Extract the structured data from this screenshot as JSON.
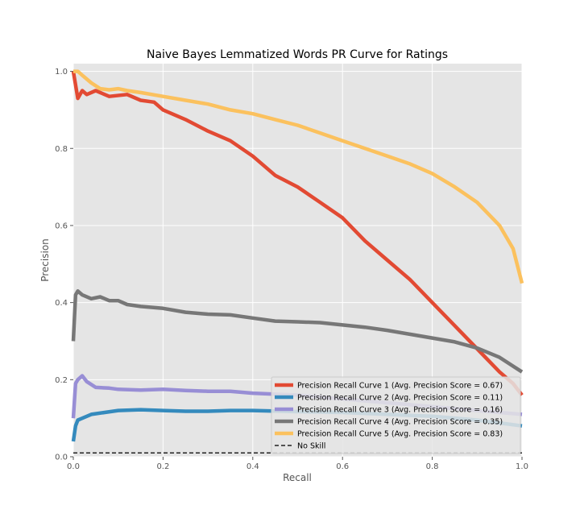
{
  "chart_data": {
    "type": "line",
    "title": "Naive Bayes Lemmatized Words PR Curve for Ratings",
    "xlabel": "Recall",
    "ylabel": "Precision",
    "xlim": [
      0,
      1
    ],
    "ylim": [
      0,
      1.02
    ],
    "xticks": [
      "0.0",
      "0.2",
      "0.4",
      "0.6",
      "0.8",
      "1.0"
    ],
    "yticks": [
      "0.0",
      "0.2",
      "0.4",
      "0.6",
      "0.8",
      "1.0"
    ],
    "grid": true,
    "legend_position": "lower-right",
    "background": "#E5E5E5",
    "series": [
      {
        "name": "Precision Recall Curve 1 (Avg. Precision Score = 0.67)",
        "color": "#E24A33",
        "x": [
          0,
          0.01,
          0.02,
          0.03,
          0.05,
          0.08,
          0.12,
          0.15,
          0.18,
          0.2,
          0.25,
          0.3,
          0.35,
          0.4,
          0.45,
          0.5,
          0.55,
          0.6,
          0.65,
          0.7,
          0.75,
          0.8,
          0.85,
          0.9,
          0.95,
          0.98,
          1.0
        ],
        "y": [
          1.0,
          0.93,
          0.95,
          0.94,
          0.95,
          0.935,
          0.94,
          0.925,
          0.92,
          0.9,
          0.875,
          0.845,
          0.82,
          0.78,
          0.73,
          0.7,
          0.66,
          0.62,
          0.56,
          0.51,
          0.46,
          0.4,
          0.34,
          0.28,
          0.22,
          0.19,
          0.16
        ]
      },
      {
        "name": "Precision Recall Curve 2 (Avg. Precision Score = 0.11)",
        "color": "#348ABD",
        "x": [
          0,
          0.005,
          0.01,
          0.02,
          0.04,
          0.07,
          0.1,
          0.15,
          0.2,
          0.25,
          0.3,
          0.35,
          0.4,
          0.5,
          0.6,
          0.7,
          0.8,
          0.9,
          1.0
        ],
        "y": [
          0.04,
          0.08,
          0.095,
          0.1,
          0.11,
          0.115,
          0.12,
          0.122,
          0.12,
          0.118,
          0.118,
          0.12,
          0.12,
          0.117,
          0.115,
          0.11,
          0.105,
          0.095,
          0.08
        ]
      },
      {
        "name": "Precision Recall Curve 3 (Avg. Precision Score = 0.16)",
        "color": "#988ED5",
        "x": [
          0,
          0.005,
          0.01,
          0.02,
          0.03,
          0.05,
          0.08,
          0.1,
          0.15,
          0.2,
          0.25,
          0.3,
          0.35,
          0.4,
          0.5,
          0.6,
          0.7,
          0.8,
          0.9,
          1.0
        ],
        "y": [
          0.1,
          0.19,
          0.2,
          0.21,
          0.195,
          0.18,
          0.178,
          0.175,
          0.173,
          0.175,
          0.172,
          0.17,
          0.17,
          0.165,
          0.16,
          0.15,
          0.14,
          0.13,
          0.12,
          0.11
        ]
      },
      {
        "name": "Precision Recall Curve 4 (Avg. Precision Score = 0.35)",
        "color": "#777777",
        "x": [
          0,
          0.005,
          0.01,
          0.02,
          0.04,
          0.06,
          0.08,
          0.1,
          0.12,
          0.15,
          0.2,
          0.25,
          0.3,
          0.35,
          0.4,
          0.45,
          0.5,
          0.55,
          0.6,
          0.65,
          0.7,
          0.75,
          0.8,
          0.85,
          0.9,
          0.95,
          1.0
        ],
        "y": [
          0.3,
          0.42,
          0.43,
          0.42,
          0.41,
          0.415,
          0.405,
          0.405,
          0.395,
          0.39,
          0.385,
          0.375,
          0.37,
          0.368,
          0.36,
          0.352,
          0.35,
          0.348,
          0.342,
          0.336,
          0.328,
          0.318,
          0.308,
          0.298,
          0.282,
          0.258,
          0.22
        ]
      },
      {
        "name": "Precision Recall Curve 5 (Avg. Precision Score = 0.83)",
        "color": "#FBC15E",
        "x": [
          0,
          0.01,
          0.02,
          0.04,
          0.06,
          0.08,
          0.1,
          0.12,
          0.15,
          0.2,
          0.25,
          0.3,
          0.35,
          0.4,
          0.45,
          0.5,
          0.55,
          0.6,
          0.65,
          0.7,
          0.75,
          0.8,
          0.85,
          0.9,
          0.95,
          0.98,
          1.0
        ],
        "y": [
          1.0,
          1.0,
          0.99,
          0.97,
          0.955,
          0.952,
          0.955,
          0.95,
          0.945,
          0.935,
          0.925,
          0.915,
          0.9,
          0.89,
          0.875,
          0.86,
          0.84,
          0.82,
          0.8,
          0.78,
          0.76,
          0.735,
          0.7,
          0.66,
          0.6,
          0.54,
          0.45
        ]
      },
      {
        "name": "No Skill",
        "color": "#222222",
        "dashed": true,
        "x": [
          0,
          1
        ],
        "y": [
          0.01,
          0.01
        ]
      }
    ]
  }
}
